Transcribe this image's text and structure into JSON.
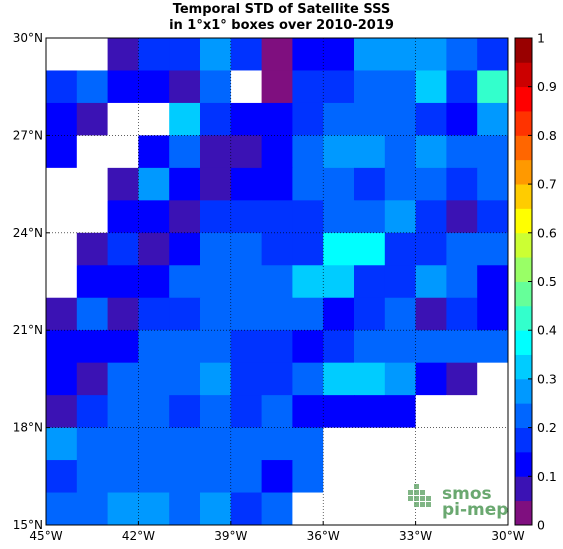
{
  "chart_data": {
    "type": "heatmap",
    "title_line1": "Temporal STD of Satellite SSS",
    "title_line2": "in 1°x1° boxes over 2010-2019",
    "x_ticks": [
      {
        "value": -45,
        "label": "45°W"
      },
      {
        "value": -42,
        "label": "42°W"
      },
      {
        "value": -39,
        "label": "39°W"
      },
      {
        "value": -36,
        "label": "36°W"
      },
      {
        "value": -33,
        "label": "33°W"
      },
      {
        "value": -30,
        "label": "30°W"
      }
    ],
    "y_ticks": [
      {
        "value": 15,
        "label": "15°N"
      },
      {
        "value": 18,
        "label": "18°N"
      },
      {
        "value": 21,
        "label": "21°N"
      },
      {
        "value": 24,
        "label": "24°N"
      },
      {
        "value": 27,
        "label": "27°N"
      },
      {
        "value": 30,
        "label": "30°N"
      }
    ],
    "xlim": [
      -45,
      -30
    ],
    "ylim": [
      15,
      30
    ],
    "colorbar": {
      "vmin": 0,
      "vmax": 1,
      "ticks": [
        "0",
        "0.1",
        "0.2",
        "0.3",
        "0.4",
        "0.5",
        "0.6",
        "0.7",
        "0.8",
        "0.9",
        "1"
      ]
    },
    "grid": true,
    "rows_top_lat": [
      30,
      29,
      28,
      27,
      26,
      25,
      24,
      23,
      22,
      21,
      20,
      19,
      18,
      17,
      16
    ],
    "cols_left_lon": [
      -45,
      -44,
      -43,
      -42,
      -41,
      -40,
      -39,
      -38,
      -37,
      -36,
      -35,
      -34,
      -33,
      -32,
      -31
    ],
    "values": [
      [
        null,
        null,
        0.05,
        0.15,
        0.18,
        0.29,
        0.17,
        0.04,
        0.14,
        0.14,
        0.25,
        0.25,
        0.25,
        0.22,
        0.17
      ],
      [
        0.18,
        0.22,
        0.14,
        0.13,
        0.05,
        0.24,
        null,
        0.04,
        0.15,
        0.18,
        0.2,
        0.23,
        0.33,
        0.19,
        0.4
      ],
      [
        0.1,
        0.06,
        null,
        null,
        0.3,
        0.15,
        0.1,
        0.11,
        0.18,
        0.22,
        0.24,
        0.24,
        0.18,
        0.13,
        0.28
      ],
      [
        0.13,
        null,
        null,
        0.13,
        0.2,
        0.06,
        0.06,
        0.13,
        0.2,
        0.29,
        0.29,
        0.24,
        0.28,
        0.23,
        0.23
      ],
      [
        null,
        null,
        0.06,
        0.25,
        0.11,
        0.06,
        0.13,
        0.13,
        0.2,
        0.2,
        0.17,
        0.23,
        0.23,
        0.17,
        0.2
      ],
      [
        null,
        null,
        0.11,
        0.14,
        0.05,
        0.15,
        0.18,
        0.18,
        0.18,
        0.2,
        0.21,
        0.28,
        0.18,
        0.09,
        0.19
      ],
      [
        null,
        0.06,
        0.16,
        0.08,
        0.11,
        0.22,
        0.22,
        0.18,
        0.18,
        0.37,
        0.37,
        0.18,
        0.18,
        0.21,
        0.21
      ],
      [
        null,
        0.12,
        0.1,
        0.1,
        0.21,
        0.21,
        0.21,
        0.21,
        0.3,
        0.3,
        0.19,
        0.19,
        0.27,
        0.21,
        0.12
      ],
      [
        0.06,
        0.22,
        0.06,
        0.15,
        0.18,
        0.21,
        0.21,
        0.21,
        0.21,
        0.1,
        0.17,
        0.24,
        0.09,
        0.15,
        0.12
      ],
      [
        0.12,
        0.12,
        0.1,
        0.21,
        0.21,
        0.21,
        0.18,
        0.18,
        0.11,
        0.18,
        0.22,
        0.2,
        0.2,
        0.2,
        0.2
      ],
      [
        0.13,
        0.09,
        0.21,
        0.21,
        0.21,
        0.25,
        0.18,
        0.18,
        0.22,
        0.31,
        0.31,
        0.25,
        0.12,
        0.08,
        null
      ],
      [
        0.06,
        0.18,
        0.21,
        0.21,
        0.16,
        0.21,
        0.17,
        0.22,
        0.13,
        0.13,
        0.13,
        0.13,
        null,
        null,
        null
      ],
      [
        0.26,
        0.21,
        0.21,
        0.21,
        0.21,
        0.21,
        0.24,
        0.21,
        0.21,
        null,
        null,
        null,
        null,
        null,
        null
      ],
      [
        0.18,
        0.21,
        0.21,
        0.23,
        0.21,
        0.21,
        0.23,
        0.1,
        0.22,
        null,
        null,
        null,
        null,
        null,
        null
      ],
      [
        0.21,
        0.21,
        0.25,
        0.25,
        0.21,
        0.29,
        0.18,
        0.21,
        null,
        null,
        null,
        null,
        null,
        null,
        null
      ]
    ]
  },
  "watermark": {
    "line1": "smos",
    "line2": "pi-mep"
  },
  "colors": {
    "background": "#ffffff",
    "missing": "#ffffff",
    "watermark": "#6aa870"
  }
}
